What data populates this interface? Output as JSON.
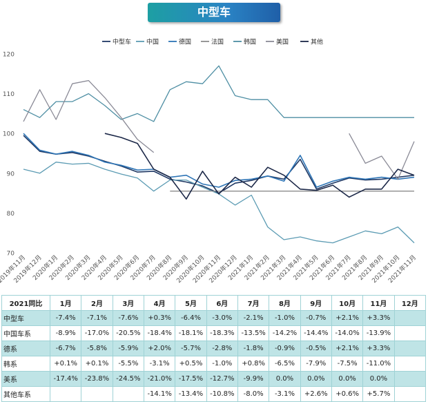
{
  "title": "中型车",
  "chart_data": {
    "type": "line",
    "title": "中型车",
    "ylim": [
      70,
      120
    ],
    "yticks": [
      70,
      80,
      90,
      100,
      110,
      120
    ],
    "categories": [
      "2019年11月",
      "2019年12月",
      "2020年1月",
      "2020年2月",
      "2020年3月",
      "2020年4月",
      "2020年5月",
      "2020年6月",
      "2020年7月",
      "2020年8月",
      "2020年9月",
      "2020年10月",
      "2020年11月",
      "2020年12月",
      "2021年1月",
      "2021年2月",
      "2021年3月",
      "2021年4月",
      "2021年5月",
      "2021年6月",
      "2021年7月",
      "2021年8月",
      "2021年9月",
      "2021年10月",
      "2021年11月"
    ],
    "legend_position": "top",
    "series": [
      {
        "name": "中型车",
        "color": "#1f3864",
        "width": 1.6,
        "values": [
          99.5,
          95.5,
          94.8,
          95.2,
          94.3,
          93,
          91.8,
          90.3,
          90.5,
          88.5,
          87.8,
          86.8,
          85,
          87.5,
          88.2,
          89.3,
          88.5,
          93.5,
          86,
          87.5,
          88.8,
          88.3,
          88.5,
          89,
          89.5
        ]
      },
      {
        "name": "中国",
        "color": "#5b9bb3",
        "width": 1.3,
        "values": [
          91,
          90,
          92.8,
          92.3,
          92.5,
          91,
          89.8,
          88.8,
          85.5,
          88.3,
          88.3,
          86.5,
          84.8,
          82,
          84.5,
          76.5,
          73.3,
          74,
          73,
          72.5,
          74,
          75.5,
          74.8,
          76.5,
          72.5
        ]
      },
      {
        "name": "德国",
        "color": "#2e75b6",
        "width": 1.6,
        "values": [
          100,
          95.8,
          94.8,
          95.5,
          94.5,
          92.8,
          92,
          90.8,
          91,
          89,
          89.5,
          87.3,
          86.5,
          88.2,
          88.5,
          89.3,
          88,
          94.5,
          86.5,
          88,
          89,
          88.5,
          89,
          88.5,
          89
        ]
      },
      {
        "name": "法国",
        "color": "#8c8c8c",
        "width": 1.3,
        "values": [
          null,
          null,
          null,
          null,
          null,
          null,
          null,
          null,
          null,
          85.5,
          85.5,
          85.5,
          85.5,
          85.5,
          85.5,
          85.5,
          85.5,
          85.5,
          85.5,
          85.5,
          85.5,
          85.5,
          85.5,
          85.5,
          85.5
        ]
      },
      {
        "name": "韩国",
        "color": "#4d8ea3",
        "width": 1.3,
        "values": [
          106,
          104,
          108,
          108,
          110,
          107,
          103.5,
          105,
          103,
          111,
          113,
          112.5,
          117,
          109.5,
          108.5,
          108.5,
          104,
          104,
          104,
          104,
          104,
          104,
          104,
          104,
          104
        ]
      },
      {
        "name": "美国",
        "color": "#8a8a96",
        "width": 1.3,
        "values": [
          103,
          111,
          103.5,
          112.5,
          113.3,
          109,
          104,
          98.5,
          95.2,
          null,
          null,
          null,
          null,
          null,
          null,
          null,
          null,
          null,
          null,
          null,
          100,
          92.5,
          94.3,
          88.5,
          98
        ]
      },
      {
        "name": "其他",
        "color": "#1b2747",
        "width": 1.6,
        "values": [
          null,
          null,
          null,
          null,
          null,
          100,
          99,
          97.5,
          91,
          89,
          83.5,
          90.5,
          84.8,
          89,
          86.5,
          91.5,
          89.5,
          86,
          85.7,
          87,
          84,
          86,
          86,
          91,
          89.5
        ]
      }
    ]
  },
  "table": {
    "corner": "2021同比",
    "months": [
      "1月",
      "2月",
      "3月",
      "4月",
      "5月",
      "6月",
      "7月",
      "8月",
      "9月",
      "10月",
      "11月",
      "12月"
    ],
    "rows": [
      {
        "label": "中型车",
        "cells": [
          "-7.4%",
          "-7.1%",
          "-7.6%",
          "+0.3%",
          "-6.4%",
          "-3.0%",
          "-2.1%",
          "-1.0%",
          "-0.7%",
          "+2.1%",
          "+3.3%",
          ""
        ]
      },
      {
        "label": "中国车系",
        "cells": [
          "-8.9%",
          "-17.0%",
          "-20.5%",
          "-18.4%",
          "-18.1%",
          "-18.3%",
          "-13.5%",
          "-14.2%",
          "-14.4%",
          "-14.0%",
          "-13.9%",
          ""
        ]
      },
      {
        "label": "德系",
        "cells": [
          "-6.7%",
          "-5.8%",
          "-5.9%",
          "+2.0%",
          "-5.7%",
          "-2.8%",
          "-1.8%",
          "-0.9%",
          "-0.5%",
          "+2.1%",
          "+3.3%",
          ""
        ]
      },
      {
        "label": "韩系",
        "cells": [
          "+0.1%",
          "+0.1%",
          "-5.5%",
          "-3.1%",
          "+0.5%",
          "-1.0%",
          "+0.8%",
          "-6.5%",
          "-7.9%",
          "-7.5%",
          "-11.0%",
          ""
        ]
      },
      {
        "label": "美系",
        "cells": [
          "-17.4%",
          "-23.8%",
          "-24.5%",
          "-21.0%",
          "-17.5%",
          "-12.7%",
          "-9.9%",
          "0.0%",
          "0.0%",
          "0.0%",
          "0.0%",
          ""
        ]
      },
      {
        "label": "其他车系",
        "cells": [
          "",
          "",
          "",
          "-14.1%",
          "-13.4%",
          "-10.8%",
          "-8.0%",
          "-3.1%",
          "+2.6%",
          "+0.6%",
          "+5.7%",
          ""
        ]
      }
    ]
  }
}
